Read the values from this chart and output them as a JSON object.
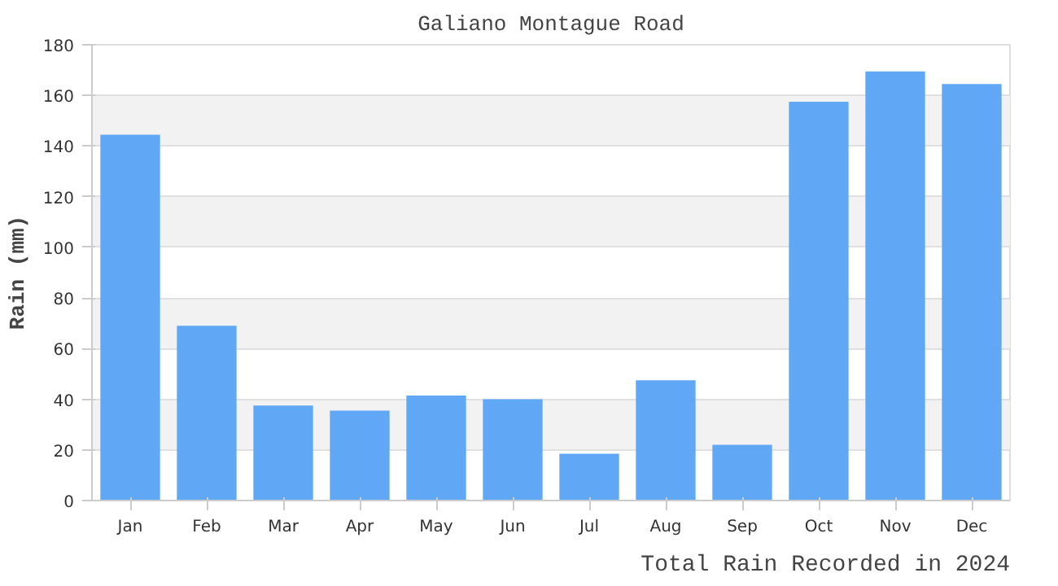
{
  "chart_data": {
    "type": "bar",
    "title": "Galiano Montague Road",
    "ylabel": "Rain (mm)",
    "categories": [
      "Jan",
      "Feb",
      "Mar",
      "Apr",
      "May",
      "Jun",
      "Jul",
      "Aug",
      "Sep",
      "Oct",
      "Nov",
      "Dec"
    ],
    "values": [
      144.5,
      69,
      37.5,
      35.5,
      41.5,
      40,
      18.5,
      47.5,
      22,
      157.5,
      169.5,
      164.5
    ],
    "color": "#60a8f5",
    "ylim": [
      0,
      180
    ],
    "yticks": [
      0,
      20,
      40,
      60,
      80,
      100,
      120,
      140,
      160,
      180
    ],
    "grid": "y",
    "annotations": [
      "Total Rain Recorded in 2024"
    ]
  }
}
